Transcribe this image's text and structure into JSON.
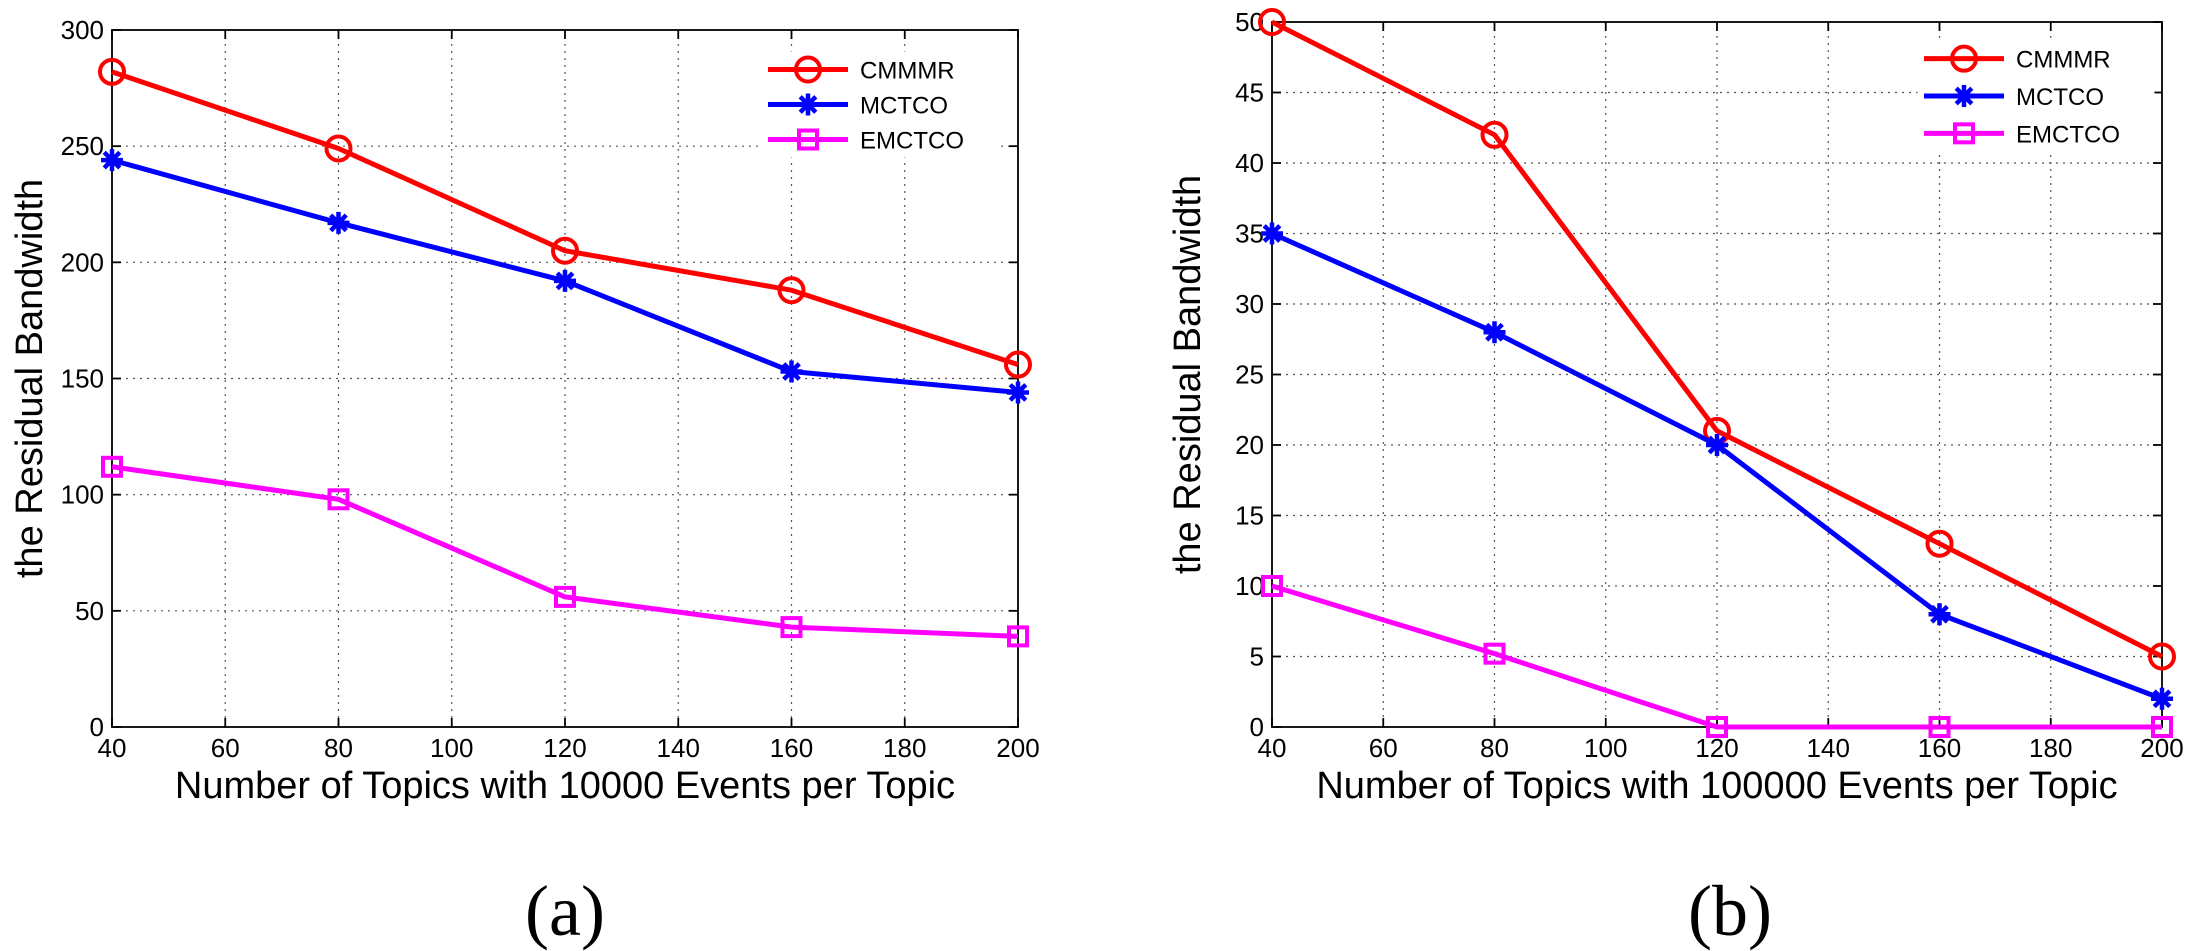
{
  "chart_data": [
    {
      "type": "line",
      "panel_label": "(a)",
      "xlabel": "Number of Topics with 10000 Events per Topic",
      "ylabel": "the Residual Bandwidth",
      "x": [
        40,
        80,
        120,
        160,
        200
      ],
      "xlim": [
        40,
        200
      ],
      "ylim": [
        0,
        300
      ],
      "xticks": [
        40,
        60,
        80,
        100,
        120,
        140,
        160,
        180,
        200
      ],
      "yticks": [
        0,
        50,
        100,
        150,
        200,
        250,
        300
      ],
      "grid": true,
      "legend_position": "top-right",
      "series": [
        {
          "name": "CMMMR",
          "color": "#ff0000",
          "marker": "circle",
          "values": [
            282,
            249,
            205,
            188,
            156
          ]
        },
        {
          "name": "MCTCO",
          "color": "#0000ff",
          "marker": "star",
          "values": [
            244,
            217,
            192,
            153,
            144
          ]
        },
        {
          "name": "EMCTCO",
          "color": "#ff00ff",
          "marker": "square",
          "values": [
            112,
            98,
            56,
            43,
            39
          ]
        }
      ]
    },
    {
      "type": "line",
      "panel_label": "(b)",
      "xlabel": "Number of Topics with 100000 Events per Topic",
      "ylabel": "the Residual Bandwidth",
      "x": [
        40,
        80,
        120,
        160,
        200
      ],
      "xlim": [
        40,
        200
      ],
      "ylim": [
        0,
        50
      ],
      "xticks": [
        40,
        60,
        80,
        100,
        120,
        140,
        160,
        180,
        200
      ],
      "yticks": [
        0,
        5,
        10,
        15,
        20,
        25,
        30,
        35,
        40,
        45,
        50
      ],
      "grid": true,
      "legend_position": "top-right",
      "series": [
        {
          "name": "CMMMR",
          "color": "#ff0000",
          "marker": "circle",
          "values": [
            50,
            42,
            21,
            13,
            5
          ]
        },
        {
          "name": "MCTCO",
          "color": "#0000ff",
          "marker": "star",
          "values": [
            35,
            28,
            20,
            8,
            2
          ]
        },
        {
          "name": "EMCTCO",
          "color": "#ff00ff",
          "marker": "square",
          "values": [
            10,
            5.2,
            0,
            0,
            0
          ]
        }
      ]
    }
  ]
}
